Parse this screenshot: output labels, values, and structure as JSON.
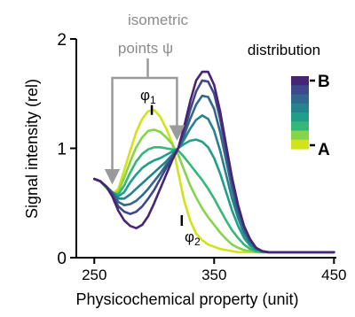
{
  "chart_data": {
    "type": "line",
    "xlabel": "Physicochemical property (unit)",
    "ylabel": "Signal intensity (rel)",
    "xlim": [
      235,
      452
    ],
    "ylim": [
      0,
      2
    ],
    "xticks": [
      250,
      350,
      450
    ],
    "yticks": [
      0,
      1,
      2
    ],
    "xtick_labels": [
      "250",
      "350",
      "450"
    ],
    "ytick_labels": [
      "0",
      "1",
      "2"
    ],
    "grid": false,
    "legend": {
      "title": "distribution",
      "top_label": "B",
      "bottom_label": "A",
      "placement": "top-right"
    },
    "colors": [
      "#d2e21b",
      "#86d549",
      "#35b779",
      "#1f9e89",
      "#26828e",
      "#31688e",
      "#3e4989",
      "#482475"
    ],
    "annotations": {
      "isometric_line1": "isometric",
      "isometric_line2": "points ψ",
      "phi1_base": "φ",
      "phi1_sub": "1",
      "phi2_base": "φ",
      "phi2_sub": "2",
      "isometric_points": [
        [
          265,
          0.6
        ],
        [
          319,
          1.0
        ]
      ],
      "phi1_point": [
        298,
        1.33
      ],
      "phi2_point": [
        323,
        0.34
      ]
    },
    "series": [
      {
        "x": [
          250,
          255,
          260,
          265,
          270,
          275,
          280,
          285,
          290,
          295,
          300,
          305,
          310,
          315,
          320,
          325,
          330,
          335,
          340,
          345,
          350,
          355,
          360,
          365,
          370,
          375,
          380,
          385,
          390,
          395,
          400,
          410,
          420,
          430,
          440,
          450
        ],
        "y": [
          0.72,
          0.7,
          0.64,
          0.58,
          0.63,
          0.8,
          0.98,
          1.15,
          1.27,
          1.34,
          1.35,
          1.29,
          1.18,
          1.05,
          0.78,
          0.52,
          0.34,
          0.22,
          0.16,
          0.12,
          0.1,
          0.08,
          0.07,
          0.06,
          0.05,
          0.05,
          0.05,
          0.05,
          0.05,
          0.05,
          0.05,
          0.05,
          0.05,
          0.05,
          0.05,
          0.05
        ]
      },
      {
        "x": [
          250,
          255,
          260,
          265,
          270,
          275,
          280,
          285,
          290,
          295,
          300,
          305,
          310,
          315,
          320,
          325,
          330,
          335,
          340,
          345,
          350,
          355,
          360,
          365,
          370,
          375,
          380,
          385,
          390,
          395,
          400,
          410,
          420,
          430,
          440,
          450
        ],
        "y": [
          0.72,
          0.7,
          0.64,
          0.58,
          0.6,
          0.73,
          0.88,
          1.01,
          1.1,
          1.16,
          1.17,
          1.15,
          1.1,
          1.04,
          0.94,
          0.8,
          0.66,
          0.55,
          0.45,
          0.37,
          0.3,
          0.23,
          0.17,
          0.12,
          0.09,
          0.07,
          0.06,
          0.05,
          0.05,
          0.05,
          0.05,
          0.05,
          0.05,
          0.05,
          0.05,
          0.05
        ]
      },
      {
        "x": [
          250,
          255,
          260,
          265,
          270,
          275,
          280,
          285,
          290,
          295,
          300,
          305,
          310,
          315,
          320,
          325,
          330,
          335,
          340,
          345,
          350,
          355,
          360,
          365,
          370,
          375,
          380,
          385,
          390,
          395,
          400,
          410,
          420,
          430,
          440,
          450
        ],
        "y": [
          0.72,
          0.7,
          0.64,
          0.59,
          0.58,
          0.66,
          0.78,
          0.88,
          0.95,
          0.99,
          1.01,
          1.01,
          1.0,
          0.99,
          0.98,
          0.92,
          0.85,
          0.78,
          0.71,
          0.63,
          0.54,
          0.44,
          0.34,
          0.25,
          0.18,
          0.12,
          0.08,
          0.06,
          0.05,
          0.05,
          0.05,
          0.05,
          0.05,
          0.05,
          0.05,
          0.05
        ]
      },
      {
        "x": [
          250,
          255,
          260,
          265,
          270,
          275,
          280,
          285,
          290,
          295,
          300,
          305,
          310,
          315,
          320,
          325,
          330,
          335,
          340,
          345,
          350,
          355,
          360,
          365,
          370,
          375,
          380,
          385,
          390,
          395,
          400,
          410,
          420,
          430,
          440,
          450
        ],
        "y": [
          0.72,
          0.7,
          0.65,
          0.6,
          0.56,
          0.6,
          0.69,
          0.76,
          0.82,
          0.86,
          0.89,
          0.91,
          0.94,
          0.97,
          1.0,
          1.04,
          1.07,
          1.08,
          1.06,
          1.01,
          0.91,
          0.77,
          0.6,
          0.43,
          0.29,
          0.18,
          0.11,
          0.07,
          0.06,
          0.05,
          0.05,
          0.05,
          0.05,
          0.05,
          0.05,
          0.05
        ]
      },
      {
        "x": [
          250,
          255,
          260,
          265,
          270,
          275,
          280,
          285,
          290,
          295,
          300,
          305,
          310,
          315,
          320,
          325,
          330,
          335,
          340,
          345,
          350,
          355,
          360,
          365,
          370,
          375,
          380,
          385,
          390,
          395,
          400,
          410,
          420,
          430,
          440,
          450
        ],
        "y": [
          0.72,
          0.7,
          0.65,
          0.6,
          0.54,
          0.54,
          0.58,
          0.63,
          0.68,
          0.73,
          0.78,
          0.83,
          0.88,
          0.94,
          1.0,
          1.08,
          1.18,
          1.26,
          1.3,
          1.27,
          1.16,
          0.98,
          0.76,
          0.54,
          0.36,
          0.22,
          0.13,
          0.08,
          0.06,
          0.05,
          0.05,
          0.05,
          0.05,
          0.05,
          0.05,
          0.05
        ]
      },
      {
        "x": [
          250,
          255,
          260,
          265,
          270,
          275,
          280,
          285,
          290,
          295,
          300,
          305,
          310,
          315,
          320,
          325,
          330,
          335,
          340,
          345,
          350,
          355,
          360,
          365,
          370,
          375,
          380,
          385,
          390,
          395,
          400,
          410,
          420,
          430,
          440,
          450
        ],
        "y": [
          0.72,
          0.7,
          0.65,
          0.59,
          0.51,
          0.48,
          0.49,
          0.52,
          0.57,
          0.63,
          0.7,
          0.77,
          0.85,
          0.92,
          1.0,
          1.12,
          1.27,
          1.4,
          1.48,
          1.47,
          1.36,
          1.15,
          0.89,
          0.63,
          0.41,
          0.25,
          0.15,
          0.09,
          0.06,
          0.05,
          0.05,
          0.05,
          0.05,
          0.05,
          0.05,
          0.05
        ]
      },
      {
        "x": [
          250,
          255,
          260,
          265,
          270,
          275,
          280,
          285,
          290,
          295,
          300,
          305,
          310,
          315,
          320,
          325,
          330,
          335,
          340,
          345,
          350,
          355,
          360,
          365,
          370,
          375,
          380,
          385,
          390,
          395,
          400,
          410,
          420,
          430,
          440,
          450
        ],
        "y": [
          0.72,
          0.7,
          0.65,
          0.58,
          0.47,
          0.42,
          0.4,
          0.42,
          0.47,
          0.54,
          0.62,
          0.72,
          0.82,
          0.91,
          1.0,
          1.16,
          1.35,
          1.52,
          1.62,
          1.61,
          1.5,
          1.27,
          0.98,
          0.7,
          0.46,
          0.28,
          0.16,
          0.09,
          0.06,
          0.05,
          0.05,
          0.05,
          0.05,
          0.05,
          0.05,
          0.05
        ]
      },
      {
        "x": [
          250,
          255,
          260,
          265,
          270,
          275,
          280,
          285,
          290,
          295,
          300,
          305,
          310,
          315,
          320,
          325,
          330,
          335,
          340,
          345,
          350,
          355,
          360,
          365,
          370,
          375,
          380,
          385,
          390,
          395,
          400,
          410,
          420,
          430,
          440,
          450
        ],
        "y": [
          0.72,
          0.7,
          0.65,
          0.56,
          0.43,
          0.34,
          0.29,
          0.27,
          0.3,
          0.38,
          0.5,
          0.63,
          0.76,
          0.89,
          1.0,
          1.2,
          1.43,
          1.62,
          1.7,
          1.7,
          1.58,
          1.34,
          1.03,
          0.73,
          0.48,
          0.29,
          0.17,
          0.09,
          0.06,
          0.05,
          0.05,
          0.05,
          0.05,
          0.05,
          0.05,
          0.05
        ]
      }
    ]
  }
}
